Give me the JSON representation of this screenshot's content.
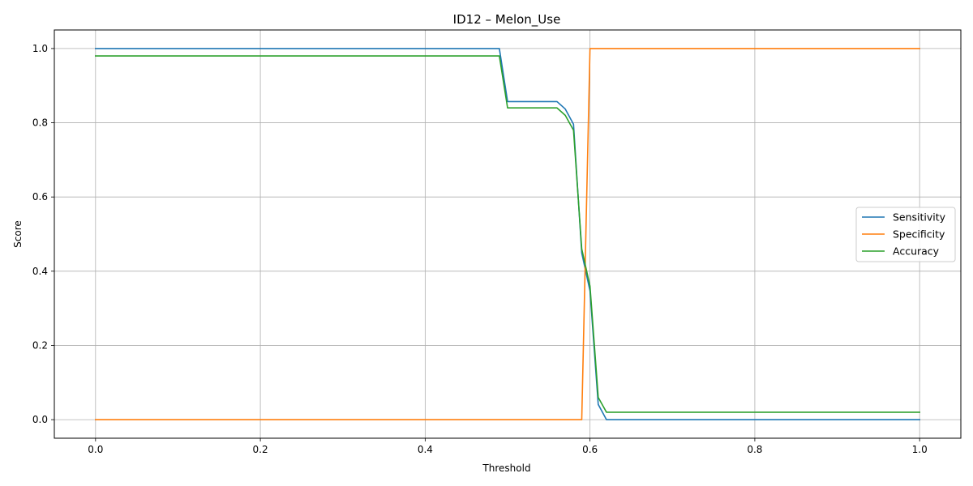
{
  "chart_data": {
    "type": "line",
    "title": "ID12 – Melon_Use",
    "xlabel": "Threshold",
    "ylabel": "Score",
    "xlim": [
      -0.05,
      1.05
    ],
    "ylim": [
      -0.05,
      1.05
    ],
    "xticks": [
      0.0,
      0.2,
      0.4,
      0.6,
      0.8,
      1.0
    ],
    "xtick_labels": [
      "0.0",
      "0.2",
      "0.4",
      "0.6",
      "0.8",
      "1.0"
    ],
    "yticks": [
      0.0,
      0.2,
      0.4,
      0.6,
      0.8,
      1.0
    ],
    "ytick_labels": [
      "0.0",
      "0.2",
      "0.4",
      "0.6",
      "0.8",
      "1.0"
    ],
    "grid": true,
    "legend": "center-right",
    "series": [
      {
        "name": "Sensitivity",
        "color": "#1f77b4",
        "x": [
          0.0,
          0.49,
          0.5,
          0.56,
          0.57,
          0.58,
          0.59,
          0.6,
          0.61,
          0.62,
          1.0
        ],
        "y": [
          1.0,
          1.0,
          0.857,
          0.857,
          0.837,
          0.796,
          0.449,
          0.347,
          0.041,
          0.0,
          0.0
        ]
      },
      {
        "name": "Specificity",
        "color": "#ff7f0e",
        "x": [
          0.0,
          0.59,
          0.6,
          1.0
        ],
        "y": [
          0.0,
          0.0,
          1.0,
          1.0
        ]
      },
      {
        "name": "Accuracy",
        "color": "#2ca02c",
        "x": [
          0.0,
          0.49,
          0.5,
          0.56,
          0.57,
          0.58,
          0.59,
          0.6,
          0.61,
          0.62,
          1.0
        ],
        "y": [
          0.98,
          0.98,
          0.84,
          0.84,
          0.82,
          0.78,
          0.46,
          0.36,
          0.06,
          0.02,
          0.02
        ]
      }
    ]
  }
}
